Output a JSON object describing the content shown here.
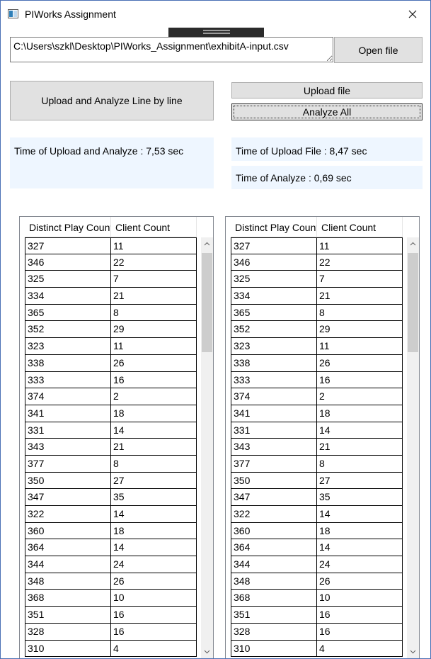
{
  "window": {
    "title": "PIWorks Assignment"
  },
  "file": {
    "path": "C:\\Users\\szkl\\Desktop\\PIWorks_Assignment\\exhibitA-input.csv",
    "open_label": "Open file"
  },
  "buttons": {
    "line_by_line": "Upload and Analyze Line by line",
    "upload_file": "Upload file",
    "analyze_all": "Analyze All"
  },
  "timings": {
    "line_by_line": "Time of Upload and Analyze : 7,53 sec",
    "upload": "Time of Upload File : 8,47 sec",
    "analyze": "Time of Analyze : 0,69 sec"
  },
  "grid_left": {
    "columns": [
      "Distinct Play Count",
      "Client Count"
    ],
    "rows": [
      [
        "327",
        "11"
      ],
      [
        "346",
        "22"
      ],
      [
        "325",
        "7"
      ],
      [
        "334",
        "21"
      ],
      [
        "365",
        "8"
      ],
      [
        "352",
        "29"
      ],
      [
        "323",
        "11"
      ],
      [
        "338",
        "26"
      ],
      [
        "333",
        "16"
      ],
      [
        "374",
        "2"
      ],
      [
        "341",
        "18"
      ],
      [
        "331",
        "14"
      ],
      [
        "343",
        "21"
      ],
      [
        "377",
        "8"
      ],
      [
        "350",
        "27"
      ],
      [
        "347",
        "35"
      ],
      [
        "322",
        "14"
      ],
      [
        "360",
        "18"
      ],
      [
        "364",
        "14"
      ],
      [
        "344",
        "24"
      ],
      [
        "348",
        "26"
      ],
      [
        "368",
        "10"
      ],
      [
        "351",
        "16"
      ],
      [
        "328",
        "16"
      ],
      [
        "310",
        "4"
      ]
    ]
  },
  "grid_right": {
    "columns": [
      "Distinct Play Count",
      "Client Count"
    ],
    "rows": [
      [
        "327",
        "11"
      ],
      [
        "346",
        "22"
      ],
      [
        "325",
        "7"
      ],
      [
        "334",
        "21"
      ],
      [
        "365",
        "8"
      ],
      [
        "352",
        "29"
      ],
      [
        "323",
        "11"
      ],
      [
        "338",
        "26"
      ],
      [
        "333",
        "16"
      ],
      [
        "374",
        "2"
      ],
      [
        "341",
        "18"
      ],
      [
        "331",
        "14"
      ],
      [
        "343",
        "21"
      ],
      [
        "377",
        "8"
      ],
      [
        "350",
        "27"
      ],
      [
        "347",
        "35"
      ],
      [
        "322",
        "14"
      ],
      [
        "360",
        "18"
      ],
      [
        "364",
        "14"
      ],
      [
        "344",
        "24"
      ],
      [
        "348",
        "26"
      ],
      [
        "368",
        "10"
      ],
      [
        "351",
        "16"
      ],
      [
        "328",
        "16"
      ],
      [
        "310",
        "4"
      ]
    ]
  },
  "icons": {
    "app": "app-window-icon",
    "close": "close-icon",
    "scroll_up": "chevron-up-icon",
    "scroll_down": "chevron-down-icon"
  }
}
